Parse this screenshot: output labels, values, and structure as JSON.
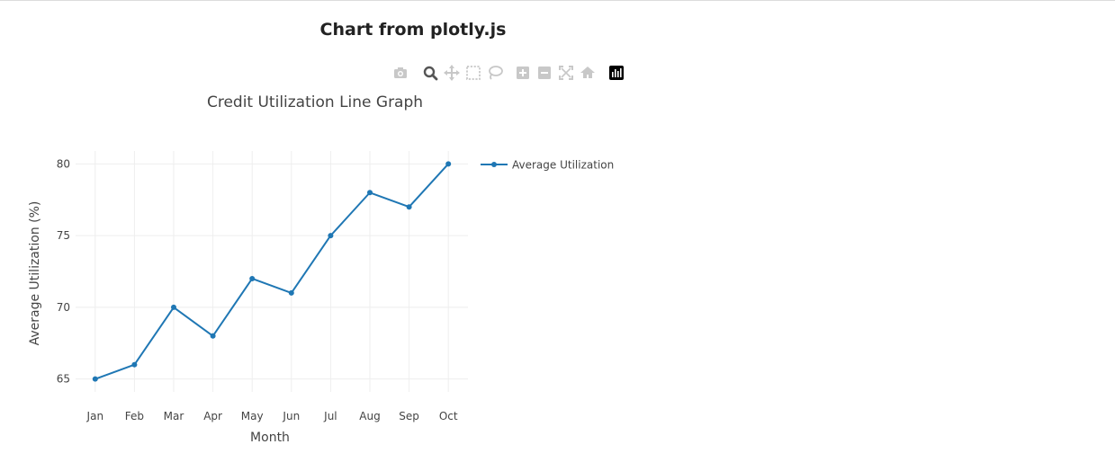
{
  "page": {
    "title": "Chart from plotly.js"
  },
  "modebar": {
    "buttons": [
      {
        "name": "camera-icon",
        "active": false
      },
      {
        "name": "zoom-icon",
        "active": true
      },
      {
        "name": "pan-icon",
        "active": false
      },
      {
        "name": "box-select-icon",
        "active": false
      },
      {
        "name": "lasso-select-icon",
        "active": false
      },
      {
        "name": "zoom-in-icon",
        "active": false
      },
      {
        "name": "zoom-out-icon",
        "active": false
      },
      {
        "name": "autoscale-icon",
        "active": false
      },
      {
        "name": "reset-axes-icon",
        "active": false
      },
      {
        "name": "plotly-logo-icon",
        "active": false
      }
    ]
  },
  "chart_data": {
    "type": "line",
    "title": "Credit Utilization Line Graph",
    "xlabel": "Month",
    "ylabel": "Average Utilization (%)",
    "categories": [
      "Jan",
      "Feb",
      "Mar",
      "Apr",
      "May",
      "Jun",
      "Jul",
      "Aug",
      "Sep",
      "Oct"
    ],
    "series": [
      {
        "name": "Average Utilization",
        "values": [
          65,
          66,
          70,
          68,
          72,
          71,
          75,
          78,
          77,
          80
        ],
        "color": "#1f77b4",
        "mode": "lines+markers"
      }
    ],
    "ylim": [
      64.1,
      80.9
    ],
    "yticks": [
      65,
      70,
      75,
      80
    ],
    "grid": true,
    "legend": "top-right"
  }
}
